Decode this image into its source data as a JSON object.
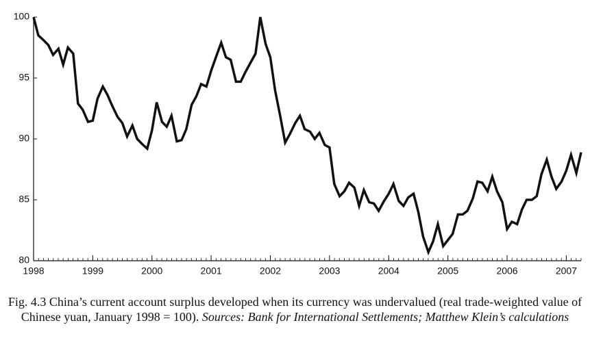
{
  "chart_data": {
    "type": "line",
    "caption": "Fig. 4.3 China’s current account surplus developed when its currency was undervalued (real trade-weighted value of Chinese yuan, January 1998 = 100).",
    "caption_sources": "Sources: Bank for International Settlements; Matthew Klein’s calculations",
    "x": [
      1998.0,
      1998.08,
      1998.17,
      1998.25,
      1998.33,
      1998.42,
      1998.5,
      1998.58,
      1998.67,
      1998.75,
      1998.83,
      1998.92,
      1999.0,
      1999.08,
      1999.17,
      1999.25,
      1999.33,
      1999.42,
      1999.5,
      1999.58,
      1999.67,
      1999.75,
      1999.83,
      1999.92,
      2000.0,
      2000.08,
      2000.17,
      2000.25,
      2000.33,
      2000.42,
      2000.5,
      2000.58,
      2000.67,
      2000.75,
      2000.83,
      2000.92,
      2001.0,
      2001.08,
      2001.17,
      2001.25,
      2001.33,
      2001.42,
      2001.5,
      2001.58,
      2001.67,
      2001.75,
      2001.83,
      2001.92,
      2002.0,
      2002.08,
      2002.17,
      2002.25,
      2002.33,
      2002.42,
      2002.5,
      2002.58,
      2002.67,
      2002.75,
      2002.83,
      2002.92,
      2003.0,
      2003.08,
      2003.17,
      2003.25,
      2003.33,
      2003.42,
      2003.5,
      2003.58,
      2003.67,
      2003.75,
      2003.83,
      2003.92,
      2004.0,
      2004.08,
      2004.17,
      2004.25,
      2004.33,
      2004.42,
      2004.5,
      2004.58,
      2004.67,
      2004.75,
      2004.83,
      2004.92,
      2005.0,
      2005.08,
      2005.17,
      2005.25,
      2005.33,
      2005.42,
      2005.5,
      2005.58,
      2005.67,
      2005.75,
      2005.83,
      2005.92,
      2006.0,
      2006.08,
      2006.17,
      2006.25,
      2006.33,
      2006.42,
      2006.5,
      2006.58,
      2006.67,
      2006.75,
      2006.83,
      2006.92,
      2007.0,
      2007.08,
      2007.17,
      2007.25
    ],
    "series": [
      {
        "color": "#111111",
        "values": [
          100,
          98.5,
          98.1,
          97.7,
          96.9,
          97.4,
          96.1,
          97.5,
          97.0,
          92.9,
          92.4,
          91.4,
          91.5,
          93.3,
          94.3,
          93.6,
          92.7,
          91.8,
          91.3,
          90.2,
          91.1,
          90.0,
          89.6,
          89.2,
          90.7,
          93.0,
          91.4,
          91.0,
          91.9,
          89.8,
          89.9,
          90.8,
          92.8,
          93.5,
          94.5,
          94.3,
          95.6,
          96.7,
          97.9,
          96.7,
          96.5,
          94.7,
          94.7,
          95.5,
          96.3,
          97.0,
          100.0,
          97.8,
          96.7,
          94.0,
          91.8,
          89.7,
          90.4,
          91.3,
          91.9,
          90.8,
          90.6,
          90.0,
          90.5,
          89.5,
          89.3,
          86.3,
          85.3,
          85.7,
          86.4,
          86.0,
          84.5,
          85.8,
          84.8,
          84.7,
          84.1,
          84.9,
          85.5,
          86.3,
          84.9,
          84.5,
          85.2,
          85.5,
          84.0,
          82.0,
          80.7,
          81.6,
          83.0,
          81.2,
          81.7,
          82.2,
          83.8,
          83.8,
          84.1,
          85.1,
          86.5,
          86.4,
          85.7,
          86.9,
          85.7,
          84.8,
          82.6,
          83.2,
          83.0,
          84.2,
          85.0,
          85.0,
          85.3,
          87.1,
          88.3,
          86.9,
          85.9,
          86.5,
          87.4,
          88.7,
          87.2,
          88.9
        ]
      }
    ],
    "xlim": [
      1998,
      2007.25
    ],
    "xticks": [
      1998,
      1999,
      2000,
      2001,
      2002,
      2003,
      2004,
      2005,
      2006,
      2007
    ],
    "ylim": [
      80,
      100
    ],
    "yticks": [
      80,
      85,
      90,
      95,
      100
    ],
    "grid": false
  }
}
